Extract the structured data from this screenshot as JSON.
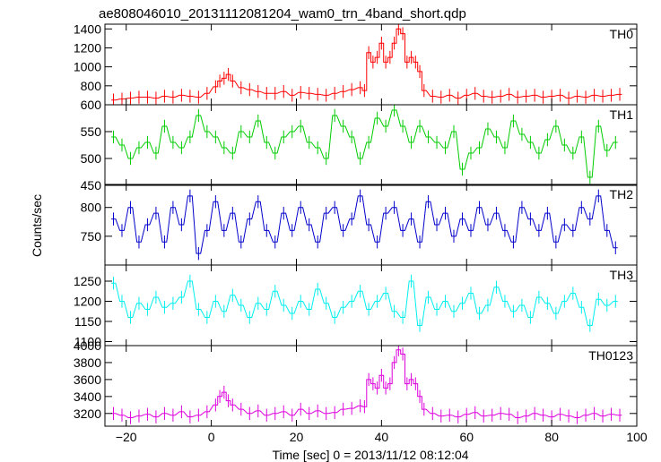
{
  "chart_data": {
    "type": "line",
    "title": "ae808046010_20131112081204_wam0_trn_4band_short.qdp",
    "xlabel": "Time [sec] 0 = 2013/11/12 08:12:04",
    "ylabel": "Counts/sec",
    "xlim": [
      -25,
      100
    ],
    "x_ticks": [
      -20,
      0,
      20,
      40,
      60,
      80,
      100
    ],
    "x_tick_labels": [
      "−20",
      "0",
      "20",
      "40",
      "60",
      "80",
      "100"
    ],
    "x_step": 1,
    "panels": [
      {
        "name": "TH0",
        "color": "#ff0000",
        "ylim": [
          600,
          1450
        ],
        "y_ticks": [
          600,
          800,
          1000,
          1200,
          1400
        ],
        "x": [
          -23,
          -21,
          -19,
          -17,
          -15,
          -13,
          -11,
          -9,
          -7,
          -5,
          -3,
          -1,
          1,
          2,
          3,
          4,
          5,
          7,
          9,
          11,
          13,
          15,
          17,
          19,
          21,
          23,
          25,
          27,
          29,
          31,
          33,
          35,
          36,
          37,
          38,
          39,
          40,
          41,
          42,
          43,
          44,
          45,
          46,
          47,
          48,
          49,
          50,
          52,
          54,
          56,
          58,
          60,
          62,
          64,
          66,
          68,
          70,
          72,
          74,
          76,
          78,
          80,
          82,
          84,
          86,
          88,
          90,
          92,
          94,
          96
        ],
        "y": [
          650,
          660,
          670,
          680,
          680,
          670,
          690,
          680,
          700,
          690,
          680,
          720,
          790,
          850,
          880,
          920,
          850,
          780,
          760,
          740,
          720,
          720,
          740,
          700,
          730,
          720,
          710,
          700,
          720,
          740,
          760,
          780,
          750,
          1150,
          1050,
          1100,
          1250,
          1050,
          1100,
          1250,
          1400,
          1350,
          1050,
          1100,
          1050,
          950,
          750,
          690,
          680,
          700,
          670,
          700,
          720,
          690,
          680,
          690,
          710,
          680,
          690,
          700,
          680,
          690,
          700,
          670,
          690,
          680,
          700,
          690,
          700,
          710
        ]
      },
      {
        "name": "TH1",
        "color": "#00cc00",
        "ylim": [
          450,
          600
        ],
        "y_ticks": [
          450,
          500,
          550
        ],
        "x": [
          -23,
          -21,
          -19,
          -17,
          -15,
          -13,
          -11,
          -9,
          -7,
          -5,
          -3,
          -1,
          1,
          3,
          5,
          7,
          9,
          11,
          13,
          15,
          17,
          19,
          21,
          23,
          25,
          27,
          29,
          31,
          33,
          35,
          37,
          39,
          41,
          43,
          45,
          47,
          49,
          51,
          53,
          55,
          57,
          59,
          61,
          63,
          65,
          67,
          69,
          71,
          73,
          75,
          77,
          79,
          81,
          83,
          85,
          87,
          89,
          91,
          93,
          95
        ],
        "y": [
          540,
          525,
          500,
          520,
          530,
          510,
          560,
          530,
          520,
          540,
          580,
          550,
          540,
          520,
          510,
          550,
          540,
          570,
          530,
          510,
          540,
          550,
          560,
          530,
          520,
          500,
          580,
          560,
          540,
          500,
          530,
          575,
          560,
          590,
          560,
          530,
          560,
          540,
          530,
          520,
          550,
          480,
          510,
          520,
          555,
          540,
          520,
          570,
          545,
          530,
          510,
          535,
          560,
          525,
          510,
          540,
          465,
          560,
          515,
          530
        ]
      },
      {
        "name": "TH2",
        "color": "#0000cc",
        "ylim": [
          700,
          840
        ],
        "y_ticks": [
          750,
          800
        ],
        "x": [
          -23,
          -21,
          -19,
          -17,
          -15,
          -13,
          -11,
          -9,
          -7,
          -5,
          -3,
          -1,
          1,
          3,
          5,
          7,
          9,
          11,
          13,
          15,
          17,
          19,
          21,
          23,
          25,
          27,
          29,
          31,
          33,
          35,
          37,
          39,
          41,
          43,
          45,
          47,
          49,
          51,
          53,
          55,
          57,
          59,
          61,
          63,
          65,
          67,
          69,
          71,
          73,
          75,
          77,
          79,
          81,
          83,
          85,
          87,
          89,
          91,
          93,
          95
        ],
        "y": [
          780,
          760,
          800,
          740,
          770,
          790,
          740,
          800,
          770,
          820,
          720,
          760,
          810,
          760,
          790,
          740,
          780,
          810,
          760,
          740,
          790,
          760,
          800,
          770,
          740,
          790,
          800,
          760,
          780,
          820,
          770,
          740,
          790,
          800,
          760,
          780,
          740,
          810,
          770,
          790,
          750,
          780,
          760,
          800,
          770,
          790,
          760,
          740,
          800,
          780,
          760,
          790,
          740,
          770,
          760,
          800,
          780,
          820,
          760,
          730
        ]
      },
      {
        "name": "TH3",
        "color": "#00eeee",
        "ylim": [
          1090,
          1290
        ],
        "y_ticks": [
          1100,
          1150,
          1200,
          1250
        ],
        "x": [
          -23,
          -21,
          -19,
          -17,
          -15,
          -13,
          -11,
          -9,
          -7,
          -5,
          -3,
          -1,
          1,
          3,
          5,
          7,
          9,
          11,
          13,
          15,
          17,
          19,
          21,
          23,
          25,
          27,
          29,
          31,
          33,
          35,
          37,
          39,
          41,
          43,
          45,
          47,
          49,
          51,
          53,
          55,
          57,
          59,
          61,
          63,
          65,
          67,
          69,
          71,
          73,
          75,
          77,
          79,
          81,
          83,
          85,
          87,
          89,
          91,
          93,
          95
        ],
        "y": [
          1245,
          1200,
          1160,
          1195,
          1180,
          1210,
          1185,
          1195,
          1210,
          1250,
          1180,
          1160,
          1200,
          1175,
          1215,
          1190,
          1160,
          1195,
          1180,
          1225,
          1190,
          1170,
          1200,
          1180,
          1230,
          1195,
          1160,
          1185,
          1200,
          1225,
          1180,
          1200,
          1220,
          1175,
          1160,
          1250,
          1140,
          1210,
          1180,
          1200,
          1175,
          1195,
          1220,
          1170,
          1190,
          1235,
          1200,
          1175,
          1190,
          1160,
          1210,
          1195,
          1170,
          1200,
          1220,
          1185,
          1140,
          1205,
          1190,
          1200
        ]
      },
      {
        "name": "TH0123",
        "color": "#dd00dd",
        "ylim": [
          3050,
          4000
        ],
        "y_ticks": [
          3200,
          3400,
          3600,
          3800,
          4000
        ],
        "x": [
          -23,
          -21,
          -19,
          -17,
          -15,
          -13,
          -11,
          -9,
          -7,
          -5,
          -3,
          -1,
          1,
          2,
          3,
          4,
          5,
          7,
          9,
          11,
          13,
          15,
          17,
          19,
          21,
          23,
          25,
          27,
          29,
          31,
          33,
          35,
          36,
          37,
          38,
          39,
          40,
          41,
          42,
          43,
          44,
          45,
          46,
          47,
          48,
          49,
          50,
          52,
          54,
          56,
          58,
          60,
          62,
          64,
          66,
          68,
          70,
          72,
          74,
          76,
          78,
          80,
          82,
          84,
          86,
          88,
          90,
          92,
          94,
          96
        ],
        "y": [
          3200,
          3180,
          3150,
          3170,
          3190,
          3160,
          3200,
          3180,
          3220,
          3160,
          3180,
          3220,
          3300,
          3400,
          3450,
          3350,
          3300,
          3250,
          3200,
          3230,
          3180,
          3200,
          3220,
          3180,
          3250,
          3200,
          3230,
          3200,
          3210,
          3250,
          3260,
          3290,
          3280,
          3600,
          3550,
          3500,
          3650,
          3500,
          3550,
          3800,
          3950,
          3900,
          3550,
          3600,
          3550,
          3400,
          3250,
          3200,
          3170,
          3180,
          3160,
          3190,
          3210,
          3170,
          3180,
          3200,
          3190,
          3150,
          3170,
          3200,
          3180,
          3160,
          3190,
          3170,
          3150,
          3180,
          3200,
          3170,
          3190,
          3180
        ]
      }
    ]
  }
}
